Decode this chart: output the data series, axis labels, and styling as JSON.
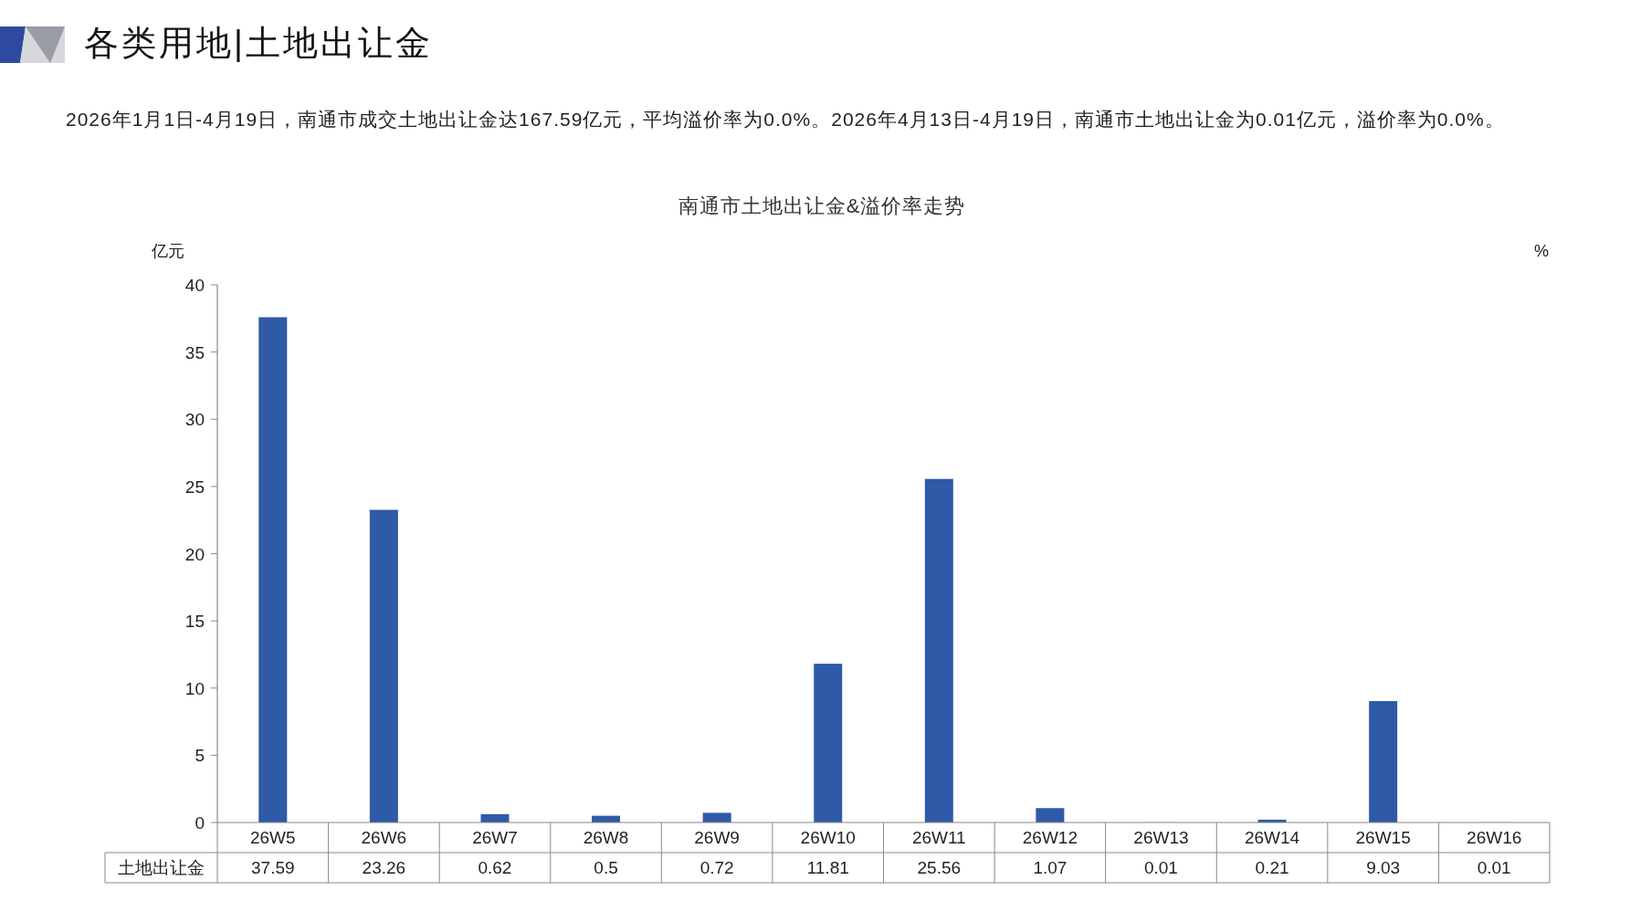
{
  "chart_data": {
    "type": "bar",
    "title": "南通市土地出让金&溢价率走势",
    "annotations": [
      "各类用地|土地出让金",
      "2026年1月1日-4月19日，南通市成交土地出让金达167.59亿元，平均溢价率为0.0%。2026年4月13日-4月19日，南通市土地出让金为0.01亿元，溢价率为0.0%。"
    ],
    "ylabel": "亿元",
    "y2label": "%",
    "categories": [
      "26W5",
      "26W6",
      "26W7",
      "26W8",
      "26W9",
      "26W10",
      "26W11",
      "26W12",
      "26W13",
      "26W14",
      "26W15",
      "26W16"
    ],
    "series": [
      {
        "name": "土地出让金",
        "color": "#2e5aa8",
        "values": [
          37.59,
          23.26,
          0.62,
          0.5,
          0.72,
          11.81,
          25.56,
          1.07,
          0.01,
          0.21,
          9.03,
          0.01
        ]
      }
    ],
    "ylim": [
      0,
      40
    ],
    "yticks": [
      0,
      5,
      10,
      15,
      20,
      25,
      30,
      35,
      40
    ],
    "data_labels": true,
    "grid": false,
    "legend": false
  }
}
